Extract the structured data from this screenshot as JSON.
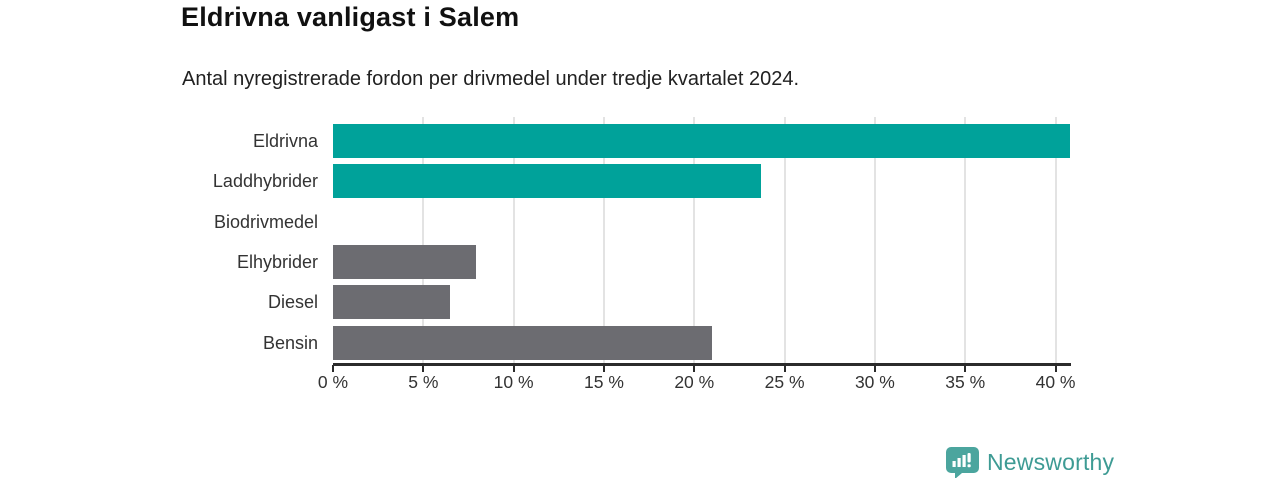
{
  "chart_data": {
    "type": "bar",
    "orientation": "horizontal",
    "title": "Eldrivna vanligast i Salem",
    "subtitle": "Antal nyregistrerade fordon per drivmedel under tredje kvartalet 2024.",
    "categories": [
      "Eldrivna",
      "Laddhybrider",
      "Biodrivmedel",
      "Elhybrider",
      "Diesel",
      "Bensin"
    ],
    "values": [
      40.8,
      23.7,
      0,
      7.9,
      6.5,
      21.0
    ],
    "bar_colors": [
      "#00a29a",
      "#00a29a",
      "#6c6c71",
      "#6c6c71",
      "#6c6c71",
      "#6c6c71"
    ],
    "accent_color": "#00a29a",
    "neutral_color": "#6c6c71",
    "xlabel": "",
    "ylabel": "",
    "xlim": [
      0,
      40.8
    ],
    "x_ticks": [
      0,
      5,
      10,
      15,
      20,
      25,
      30,
      35,
      40
    ],
    "x_tick_labels": [
      "0 %",
      "5 %",
      "10 %",
      "15 %",
      "20 %",
      "25 %",
      "30 %",
      "35 %",
      "40 %"
    ],
    "grid": "vertical",
    "legend": "none"
  },
  "footer": {
    "brand": "Newsworthy",
    "brand_color": "#3e9b94",
    "icon_color": "#4ba59e",
    "icon": "newsworthy-bar-chart-speech-bubble"
  }
}
